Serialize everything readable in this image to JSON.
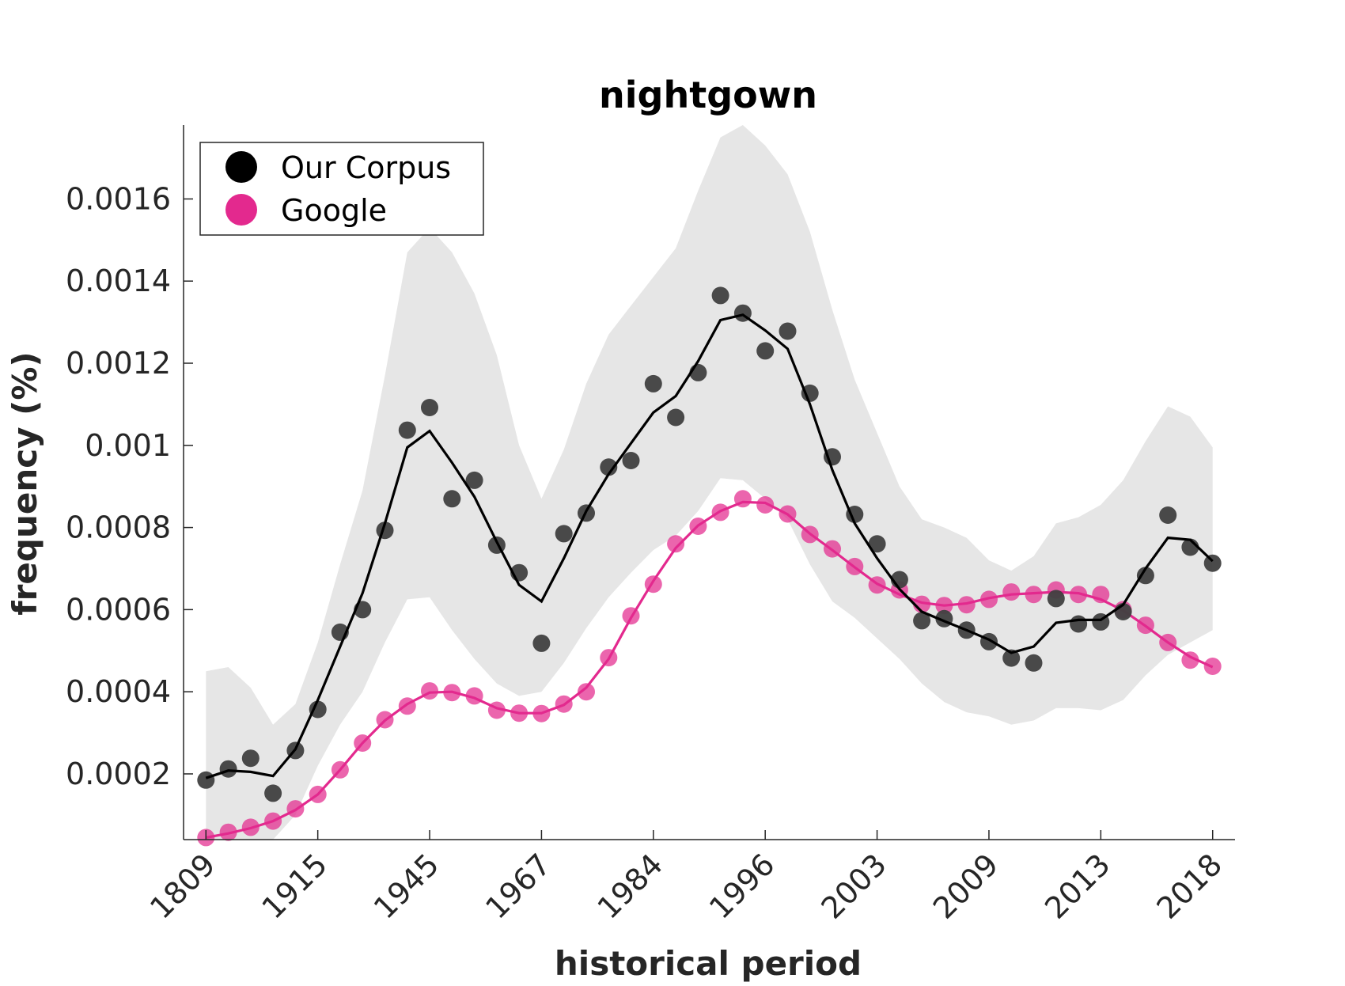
{
  "chart_data": {
    "type": "line",
    "title": "nightgown",
    "xlabel": "historical period",
    "ylabel": "frequency (%)",
    "x_tick_labels": [
      "1809",
      "1915",
      "1945",
      "1967",
      "1984",
      "1996",
      "2003",
      "2009",
      "2013",
      "2018"
    ],
    "x_tick_indices": [
      0,
      5,
      10,
      15,
      20,
      25,
      30,
      35,
      40,
      45
    ],
    "y_ticks": [
      0.0002,
      0.0004,
      0.0006,
      0.0008,
      0.001,
      0.0012,
      0.0014,
      0.0016
    ],
    "y_tick_labels": [
      "0.0002",
      "0.0004",
      "0.0006",
      "0.0008",
      "0.001",
      "0.0012",
      "0.0014",
      "0.0016"
    ],
    "ylim": [
      4e-05,
      0.00178
    ],
    "xlim": [
      -1,
      46
    ],
    "legend_position": "top-left",
    "grid": false,
    "colors": {
      "corpus": "#000000",
      "corpus_points": "#404040",
      "google": "#e3298e",
      "band": "#e6e6e6",
      "axis": "#262626"
    },
    "series": [
      {
        "name": "Our Corpus",
        "points": [
          0.000185,
          0.000212,
          0.000238,
          0.000153,
          0.000257,
          0.000357,
          0.000545,
          0.0006,
          0.000793,
          0.001037,
          0.001092,
          0.00087,
          0.000915,
          0.000757,
          0.00069,
          0.000518,
          0.000785,
          0.000835,
          0.000947,
          0.000963,
          0.00115,
          0.001068,
          0.001177,
          0.001365,
          0.001322,
          0.00123,
          0.001278,
          0.001127,
          0.000972,
          0.000832,
          0.00076,
          0.000673,
          0.000573,
          0.000578,
          0.00055,
          0.000522,
          0.000482,
          0.00047,
          0.000627,
          0.000565,
          0.00057,
          0.000595,
          0.000683,
          0.00083,
          0.000752,
          0.000713
        ],
        "smoothed": [
          0.00019,
          0.000208,
          0.000205,
          0.000195,
          0.00026,
          0.00038,
          0.00051,
          0.00064,
          0.00081,
          0.000995,
          0.001035,
          0.000958,
          0.000875,
          0.000765,
          0.00066,
          0.00062,
          0.000725,
          0.00084,
          0.00093,
          0.001005,
          0.00108,
          0.00112,
          0.001205,
          0.001305,
          0.001318,
          0.00128,
          0.001235,
          0.0011,
          0.00094,
          0.00081,
          0.000725,
          0.00065,
          0.000595,
          0.000572,
          0.00055,
          0.000527,
          0.000495,
          0.00051,
          0.000568,
          0.000575,
          0.000575,
          0.000612,
          0.0007,
          0.000775,
          0.00077,
          0.000718
        ],
        "band_upper": [
          0.00045,
          0.00046,
          0.00041,
          0.00032,
          0.00037,
          0.00052,
          0.00071,
          0.00089,
          0.00117,
          0.00147,
          0.00153,
          0.00147,
          0.00137,
          0.00122,
          0.001,
          0.00087,
          0.00099,
          0.00115,
          0.00127,
          0.00134,
          0.00141,
          0.00148,
          0.00162,
          0.00175,
          0.00178,
          0.00173,
          0.00166,
          0.00152,
          0.00133,
          0.00116,
          0.00103,
          0.0009,
          0.00082,
          0.0008,
          0.000775,
          0.00072,
          0.000695,
          0.00073,
          0.00081,
          0.000825,
          0.000855,
          0.000915,
          0.00101,
          0.001095,
          0.00107,
          0.000995
        ],
        "band_lower": [
          4e-05,
          4e-05,
          4e-05,
          4e-05,
          0.0001,
          0.00022,
          0.00032,
          0.0004,
          0.00052,
          0.000625,
          0.00063,
          0.00055,
          0.00048,
          0.00042,
          0.00039,
          0.0004,
          0.00047,
          0.000555,
          0.00063,
          0.00069,
          0.000745,
          0.00078,
          0.00084,
          0.00092,
          0.000915,
          0.00087,
          0.00082,
          0.00071,
          0.00062,
          0.00058,
          0.00053,
          0.00048,
          0.00042,
          0.000375,
          0.00035,
          0.00034,
          0.00032,
          0.00033,
          0.00036,
          0.00036,
          0.000355,
          0.00038,
          0.00044,
          0.00049,
          0.00052,
          0.00055
        ]
      },
      {
        "name": "Google",
        "points": [
          4.5e-05,
          5.8e-05,
          7e-05,
          8.5e-05,
          0.000115,
          0.00015,
          0.00021,
          0.000275,
          0.000332,
          0.000365,
          0.000402,
          0.000398,
          0.00039,
          0.000355,
          0.000348,
          0.000347,
          0.00037,
          0.0004,
          0.000483,
          0.000585,
          0.000662,
          0.00076,
          0.000803,
          0.000837,
          0.00087,
          0.000855,
          0.000833,
          0.000783,
          0.000748,
          0.000705,
          0.00066,
          0.000648,
          0.000613,
          0.00061,
          0.000612,
          0.000625,
          0.000643,
          0.000637,
          0.000648,
          0.000637,
          0.000637,
          0.0006,
          0.000562,
          0.00052,
          0.000477,
          0.000462
        ],
        "smoothed": [
          4.5e-05,
          5.5e-05,
          6.8e-05,
          8.5e-05,
          0.000112,
          0.00015,
          0.00021,
          0.000275,
          0.00033,
          0.00037,
          0.000398,
          0.0004,
          0.000385,
          0.00036,
          0.000348,
          0.000348,
          0.000368,
          0.00041,
          0.00048,
          0.00058,
          0.00067,
          0.00075,
          0.000805,
          0.00084,
          0.000862,
          0.00086,
          0.000832,
          0.000785,
          0.000745,
          0.000703,
          0.000663,
          0.000637,
          0.000617,
          0.00061,
          0.000615,
          0.000628,
          0.000637,
          0.00064,
          0.000643,
          0.00064,
          0.000625,
          0.000598,
          0.00056,
          0.00052,
          0.000485,
          0.00046
        ]
      }
    ]
  }
}
